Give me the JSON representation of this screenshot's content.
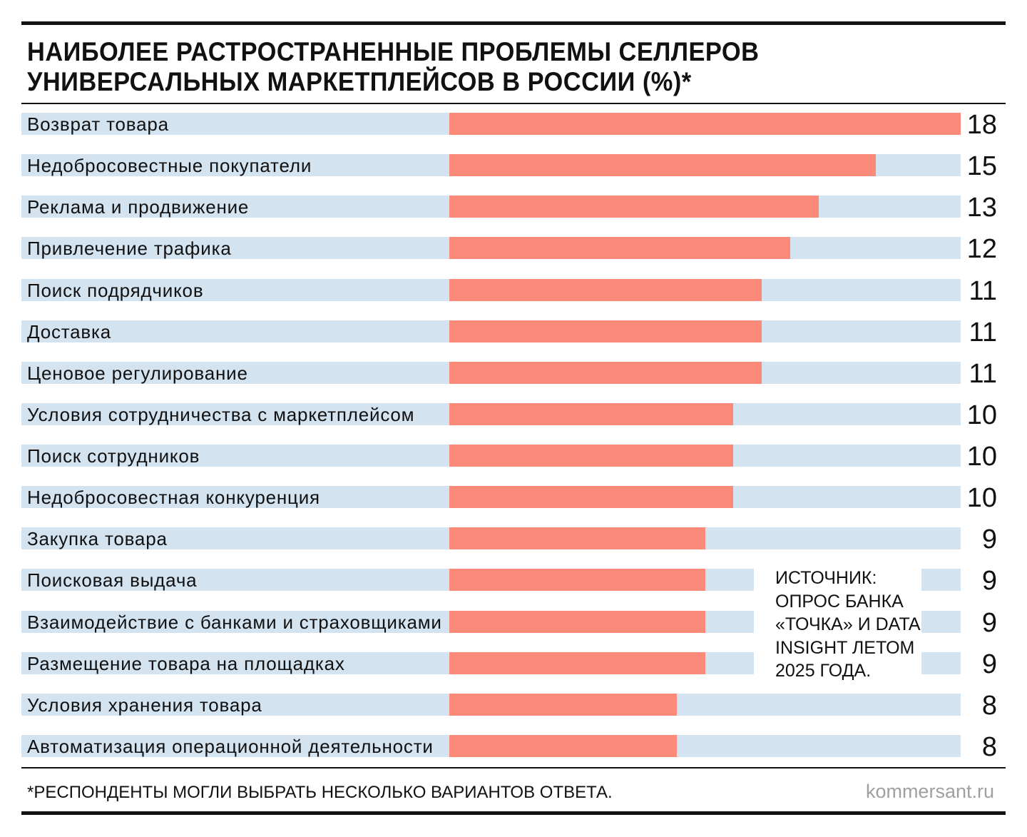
{
  "chart_data": {
    "type": "bar",
    "orientation": "horizontal",
    "title": "НАИБОЛЕЕ РАСТРОСТРАНЕННЫЕ ПРОБЛЕМЫ СЕЛЛЕРОВ\nУНИВЕРСАЛЬНЫХ МАРКЕТПЛЕЙСОВ В РОССИИ (%)*",
    "categories": [
      "Возврат товара",
      "Недобросовестные покупатели",
      "Реклама и продвижение",
      "Привлечение трафика",
      "Поиск подрядчиков",
      "Доставка",
      "Ценовое регулирование",
      "Условия сотрудничества с маркетплейсом",
      "Поиск сотрудников",
      "Недобросовестная конкуренция",
      "Закупка товара",
      "Поисковая выдача",
      "Взаимодействие с банками и страховщиками",
      "Размещение товара на площадках",
      "Условия хранения товара",
      "Автоматизация операционной деятельности"
    ],
    "values": [
      18,
      15,
      13,
      12,
      11,
      11,
      11,
      10,
      10,
      10,
      9,
      9,
      9,
      9,
      8,
      8
    ],
    "xlim": [
      0,
      18
    ],
    "grid": false,
    "colors": {
      "bar": "#fb8a7b",
      "track": "#d3e3f0"
    }
  },
  "source": "ИСТОЧНИК:\nОПРОС БАНКА\n«ТОЧКА» И DATA\nINSIGHT ЛЕТОМ\n2025 ГОДА.",
  "footnote": "*РЕСПОНДЕНТЫ МОГЛИ ВЫБРАТЬ НЕСКОЛЬКО ВАРИАНТОВ ОТВЕТА.",
  "site": "kommersant.ru"
}
